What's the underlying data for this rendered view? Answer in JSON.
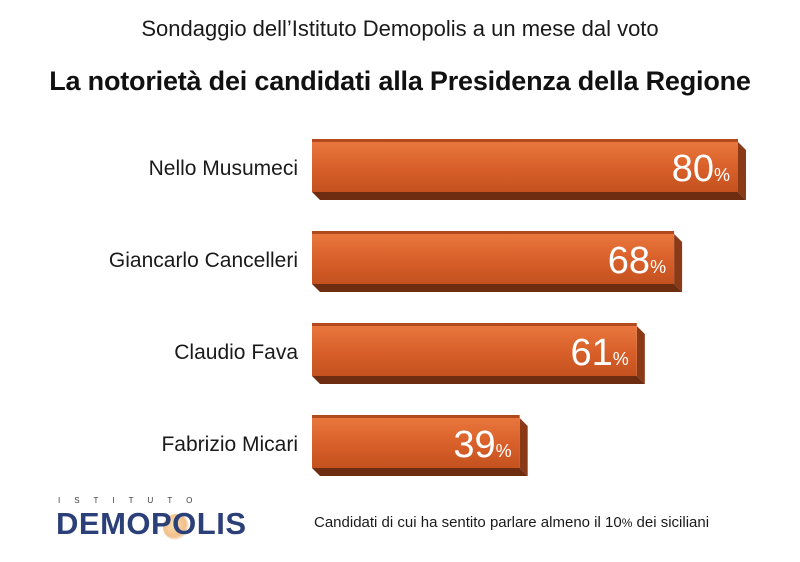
{
  "header": {
    "subtitle": "Sondaggio dell’Istituto Demopolis a un mese dal voto",
    "title": "La notorietà dei candidati alla Presidenza della Regione"
  },
  "chart_data": {
    "type": "bar",
    "orientation": "horizontal",
    "categories": [
      "Nello Musumeci",
      "Giancarlo Cancelleri",
      "Claudio Fava",
      "Fabrizio Micari"
    ],
    "values": [
      80,
      68,
      61,
      39
    ],
    "unit": "%",
    "title": "La notorietà dei candidati alla Presidenza della Regione",
    "subtitle": "Sondaggio dell’Istituto Demopolis a un mese dal voto",
    "xlabel": "",
    "ylabel": "",
    "xlim": [
      0,
      80
    ],
    "grid": false,
    "legend": "none",
    "bar_color": "#d9602a"
  },
  "footer": {
    "logo_top": "ISTITUTO",
    "logo_main": "DEMOPOLIS",
    "note_before": "Candidati di cui ha sentito parlare almeno il 10",
    "note_pct": "%",
    "note_after": " dei siciliani"
  },
  "colors": {
    "bar": "#d9602a",
    "bar_dark": "#8a3a17",
    "logo_blue": "#2b3f78"
  }
}
